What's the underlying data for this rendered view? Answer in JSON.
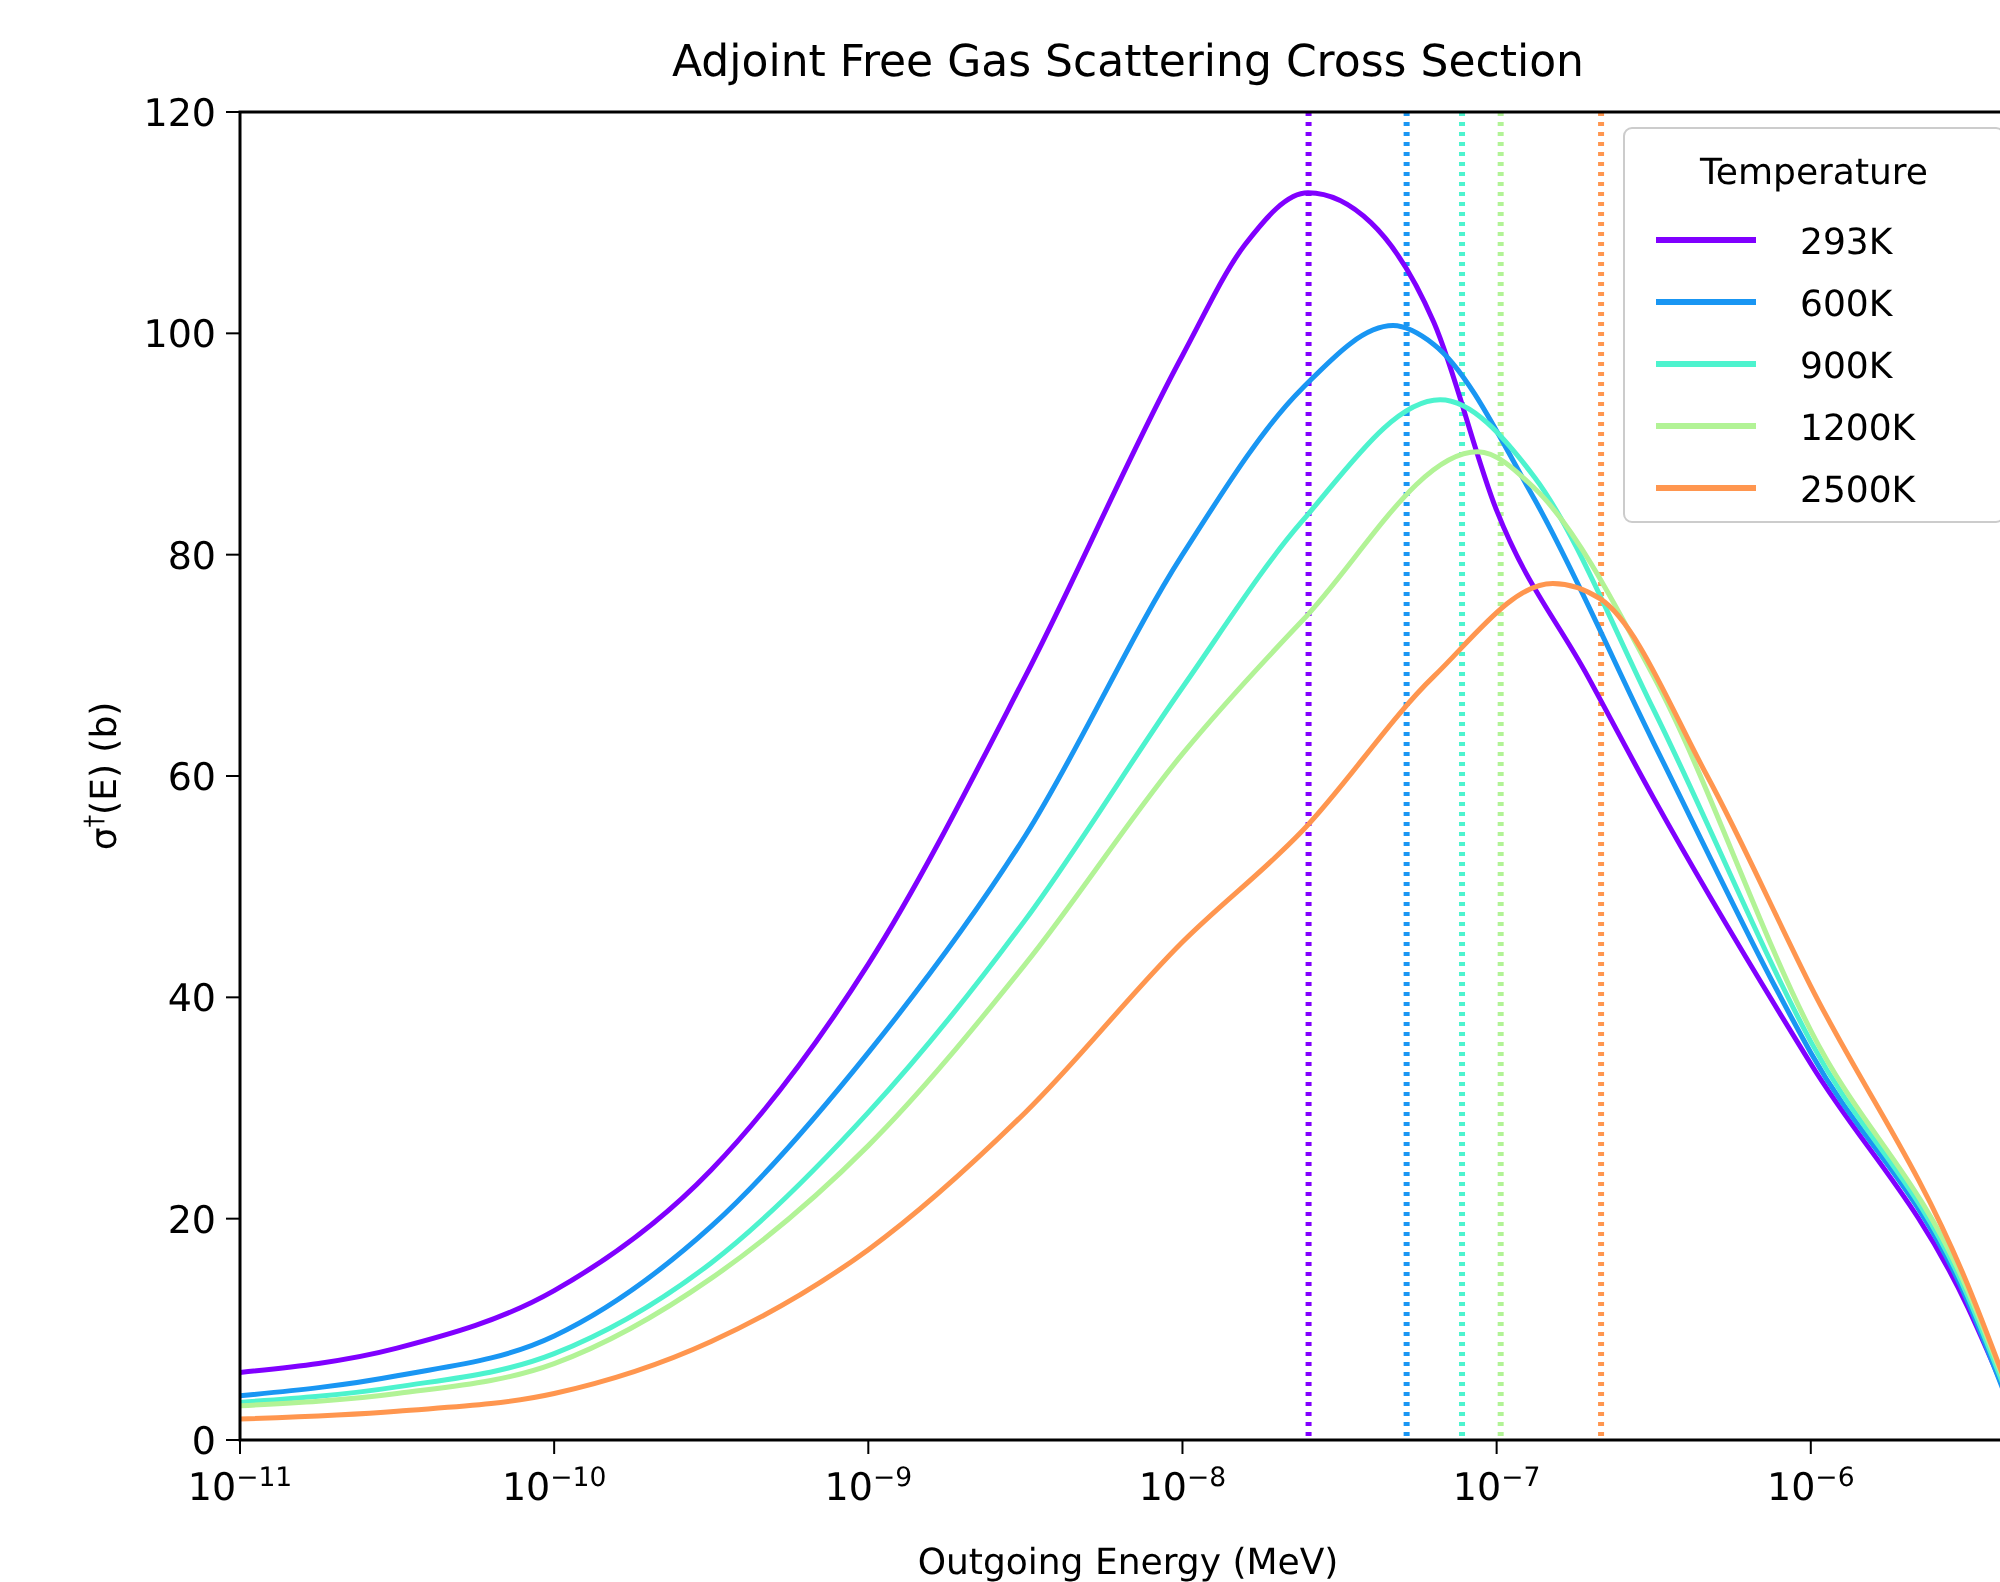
{
  "chart_data": {
    "type": "line",
    "title": "Adjoint Free Gas Scattering Cross Section",
    "xlabel": "Outgoing Energy (MeV)",
    "ylabel": "σ$^{†}$(E) (b)",
    "legend_title": "Temperature",
    "legend": "top right",
    "grid": false,
    "log": "x",
    "line_style": "solid",
    "marker": "none",
    "xlim": [
      1e-11,
      4.5e-06
    ],
    "xticks": [
      {
        "value": 1e-11,
        "label": "10$^{−11}$"
      },
      {
        "value": 1e-10,
        "label": "10$^{−10}$"
      },
      {
        "value": 1e-09,
        "label": "10$^{−9}$"
      },
      {
        "value": 1e-08,
        "label": "10$^{−8}$"
      },
      {
        "value": 1e-07,
        "label": "10$^{−7}$"
      },
      {
        "value": 1e-06,
        "label": "10$^{−6}$"
      }
    ],
    "ylim": [
      0,
      120
    ],
    "yticks": [
      0,
      20,
      40,
      60,
      80,
      100,
      120
    ],
    "series": [
      {
        "name": "293K",
        "color": "#8000ff",
        "x": [
          1e-11,
          3.16e-11,
          1e-10,
          3.16e-10,
          1e-09,
          3.16e-09,
          1e-08,
          1.58e-08,
          2.51e-08,
          3.98e-08,
          6.31e-08,
          1e-07,
          1.95e-07,
          3.16e-07,
          1e-06,
          3.16e-06,
          4.5e-06
        ],
        "values": [
          6.1,
          8.3,
          13.5,
          24.4,
          43,
          69,
          98,
          108,
          112.7,
          110,
          101,
          84,
          69,
          58,
          34,
          12,
          2
        ]
      },
      {
        "name": "600K",
        "color": "#1996f3",
        "x": [
          1e-11,
          3.16e-11,
          1e-10,
          3.16e-10,
          1e-09,
          3.16e-09,
          1e-08,
          2.4e-08,
          4.68e-08,
          6.31e-08,
          1.32e-07,
          3.16e-07,
          1e-06,
          3.16e-06,
          4.5e-06
        ],
        "values": [
          4.0,
          5.8,
          9.4,
          19.3,
          35,
          54.6,
          80,
          95,
          100.7,
          99,
          85,
          63,
          35,
          12.5,
          1.5
        ]
      },
      {
        "name": "900K",
        "color": "#4df3ce",
        "x": [
          1e-11,
          3.16e-11,
          1e-10,
          3.16e-10,
          1e-09,
          3.16e-09,
          1e-08,
          2.4e-08,
          6.61e-08,
          1.32e-07,
          3.16e-07,
          1e-06,
          3.16e-06,
          4.5e-06
        ],
        "values": [
          3.4,
          4.8,
          7.8,
          16,
          29.6,
          47,
          68,
          83,
          94,
          87,
          66,
          36,
          13,
          2
        ]
      },
      {
        "name": "1200K",
        "color": "#b2f396",
        "x": [
          1e-11,
          3.16e-11,
          1e-10,
          3.16e-10,
          1e-09,
          3.16e-09,
          1e-08,
          2.4e-08,
          8.71e-08,
          1.32e-07,
          3.16e-07,
          1e-06,
          3.16e-06,
          4.5e-06
        ],
        "values": [
          3.1,
          4.2,
          6.9,
          14.6,
          26.6,
          43,
          62,
          74,
          89.3,
          86,
          69,
          37,
          13.5,
          2.5
        ]
      },
      {
        "name": "2500K",
        "color": "#ff964f",
        "x": [
          1e-11,
          3.16e-11,
          1e-10,
          3.16e-10,
          1e-09,
          3.16e-09,
          1e-08,
          2.4e-08,
          6.31e-08,
          1.51e-07,
          2.14e-07,
          4.68e-07,
          1e-06,
          3.16e-06,
          4.5e-06
        ],
        "values": [
          1.9,
          2.6,
          4.2,
          8.9,
          17.2,
          29.6,
          45,
          55,
          69,
          77.4,
          76,
          60,
          41,
          14,
          2.7
        ]
      }
    ],
    "ref_lines": [
      {
        "axis": "x",
        "value": 2.52e-08,
        "color": "#8000ff",
        "line_style": "dotted"
      },
      {
        "axis": "x",
        "value": 5.17e-08,
        "color": "#1996f3",
        "line_style": "dotted"
      },
      {
        "axis": "x",
        "value": 7.76e-08,
        "color": "#4df3ce",
        "line_style": "dotted"
      },
      {
        "axis": "x",
        "value": 1.03e-07,
        "color": "#b2f396",
        "line_style": "dotted"
      },
      {
        "axis": "x",
        "value": 2.15e-07,
        "color": "#ff964f",
        "line_style": "dotted"
      }
    ]
  }
}
